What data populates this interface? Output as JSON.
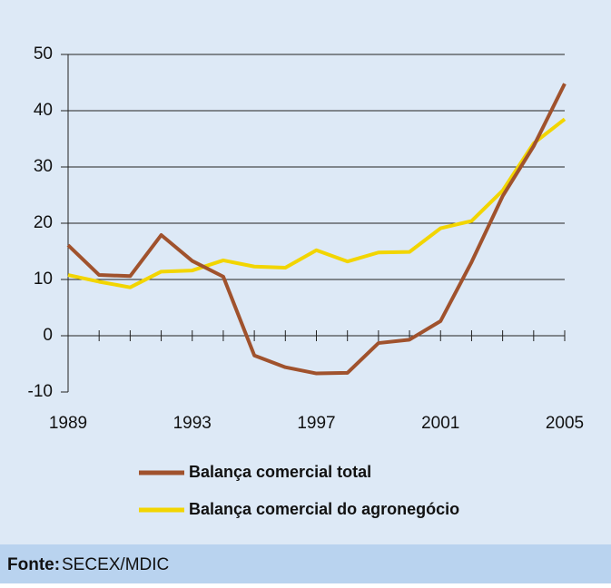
{
  "chart_data": {
    "type": "line",
    "x": [
      1989,
      1990,
      1991,
      1992,
      1993,
      1994,
      1995,
      1996,
      1997,
      1998,
      1999,
      2000,
      2001,
      2002,
      2003,
      2004,
      2005
    ],
    "series": [
      {
        "name": "Balança comercial total",
        "color": "#a0522d",
        "values": [
          16.1,
          10.8,
          10.6,
          17.9,
          13.3,
          10.5,
          -3.5,
          -5.6,
          -6.7,
          -6.6,
          -1.3,
          -0.7,
          2.6,
          13.1,
          24.8,
          33.7,
          44.8
        ]
      },
      {
        "name": "Balança comercial do agronegócio",
        "color": "#f2d500",
        "values": [
          10.8,
          9.6,
          8.6,
          11.4,
          11.6,
          13.4,
          12.3,
          12.1,
          15.2,
          13.2,
          14.8,
          14.9,
          19.1,
          20.4,
          25.8,
          34.2,
          38.5
        ]
      }
    ],
    "xlim": [
      1989,
      2005
    ],
    "xticks": [
      1989,
      1993,
      1997,
      2001,
      2005
    ],
    "ylim": [
      -10,
      50
    ],
    "yticks": [
      -10,
      0,
      10,
      20,
      30,
      40,
      50
    ],
    "grid": true
  },
  "footer": {
    "label": "Fonte:",
    "text": "SECEX/MDIC"
  }
}
